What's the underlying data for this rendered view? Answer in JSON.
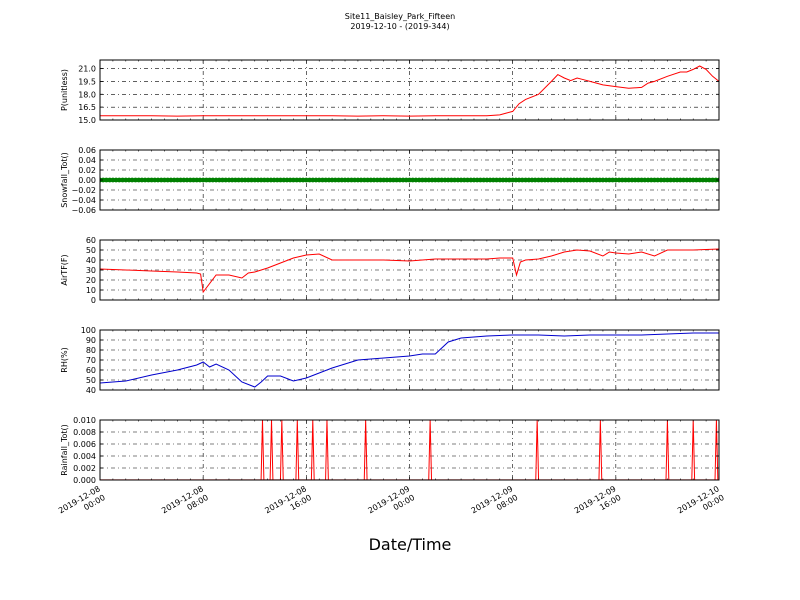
{
  "title_line1": "Site11_Baisley_Park_Fifteen",
  "title_line2": "2019-12-10 - (2019-344)",
  "xlabel": "Date/Time",
  "x_ticks": [
    {
      "t": 0,
      "line1": "2019-12-08",
      "line2": "00:00"
    },
    {
      "t": 8,
      "line1": "2019-12-08",
      "line2": "08:00"
    },
    {
      "t": 16,
      "line1": "2019-12-08",
      "line2": "16:00"
    },
    {
      "t": 24,
      "line1": "2019-12-09",
      "line2": "00:00"
    },
    {
      "t": 32,
      "line1": "2019-12-09",
      "line2": "08:00"
    },
    {
      "t": 40,
      "line1": "2019-12-09",
      "line2": "16:00"
    },
    {
      "t": 48,
      "line1": "2019-12-10",
      "line2": "00:00"
    }
  ],
  "chart_data": [
    {
      "type": "line",
      "ylabel": "P(unitless)",
      "color": "#ff0000",
      "ylim": [
        15.0,
        22.0
      ],
      "yticks": [
        15.0,
        16.5,
        18.0,
        19.5,
        21.0
      ],
      "ytick_labels": [
        "15.0",
        "16.5",
        "18.0",
        "19.5",
        "21.0"
      ],
      "x_hours": [
        0,
        4,
        6,
        8,
        12,
        16,
        18,
        20,
        22,
        24,
        26,
        28,
        30,
        31,
        31.5,
        32,
        32.5,
        33,
        34,
        35,
        35.5,
        36,
        36.5,
        37,
        37.5,
        38,
        39,
        40,
        41,
        42,
        42.5,
        43,
        44,
        45,
        45.5,
        46,
        46.5,
        47,
        47.5,
        48
      ],
      "y": [
        15.5,
        15.5,
        15.45,
        15.5,
        15.5,
        15.5,
        15.5,
        15.45,
        15.5,
        15.45,
        15.5,
        15.5,
        15.5,
        15.6,
        15.8,
        16.0,
        16.9,
        17.4,
        18.0,
        19.5,
        20.3,
        19.9,
        19.6,
        19.9,
        19.7,
        19.5,
        19.1,
        18.9,
        18.7,
        18.8,
        19.3,
        19.5,
        20.1,
        20.6,
        20.6,
        20.9,
        21.3,
        20.9,
        20.1,
        19.5
      ]
    },
    {
      "type": "scatter",
      "ylabel": "Snowfall_Tot()",
      "color": "#008000",
      "ylim": [
        -0.06,
        0.06
      ],
      "yticks": [
        -0.06,
        -0.04,
        -0.02,
        0.0,
        0.02,
        0.04,
        0.06
      ],
      "ytick_labels": [
        "−0.06",
        "−0.04",
        "−0.02",
        "0.00",
        "0.02",
        "0.04",
        "0.06"
      ],
      "x_hours": [
        0,
        48
      ],
      "y": [
        0.0,
        0.0
      ]
    },
    {
      "type": "line",
      "ylabel": "AirTF(F)",
      "color": "#ff0000",
      "ylim": [
        0,
        60
      ],
      "yticks": [
        0,
        10,
        20,
        30,
        40,
        50,
        60
      ],
      "ytick_labels": [
        "0",
        "10",
        "20",
        "30",
        "40",
        "50",
        "60"
      ],
      "x_hours": [
        0,
        2,
        4,
        6,
        7.5,
        7.8,
        8,
        9,
        10,
        11,
        11.5,
        12,
        13,
        14,
        15,
        16,
        17,
        18,
        20,
        22,
        24,
        26,
        28,
        30,
        31,
        32,
        32.3,
        32.6,
        33,
        34,
        35,
        36,
        37,
        38,
        39,
        39.5,
        40,
        41,
        42,
        43,
        44,
        46,
        48
      ],
      "y": [
        31,
        30,
        29,
        28,
        27,
        26,
        8,
        25,
        25,
        22,
        27,
        28,
        32,
        37,
        42,
        45,
        46,
        40,
        40,
        40,
        39,
        41,
        41,
        41,
        42,
        42,
        25,
        38,
        40,
        41,
        44,
        48,
        50,
        49,
        44,
        48,
        47,
        46,
        48,
        44,
        50,
        50,
        51
      ]
    },
    {
      "type": "line",
      "ylabel": "RH(%)",
      "color": "#0000cc",
      "ylim": [
        40,
        100
      ],
      "yticks": [
        40,
        50,
        60,
        70,
        80,
        90,
        100
      ],
      "ytick_labels": [
        "40",
        "50",
        "60",
        "70",
        "80",
        "90",
        "100"
      ],
      "x_hours": [
        0,
        2,
        4,
        6,
        7.5,
        8,
        8.5,
        9,
        10,
        10.5,
        11,
        12,
        12.5,
        13,
        14,
        15,
        16,
        18,
        20,
        22,
        24,
        25,
        26,
        27,
        28,
        30,
        32,
        34,
        36,
        38,
        40,
        42,
        44,
        46,
        48
      ],
      "y": [
        47,
        49,
        55,
        60,
        65,
        68,
        63,
        66,
        60,
        54,
        48,
        43,
        48,
        54,
        54,
        49,
        52,
        62,
        70,
        72,
        74,
        76,
        76,
        88,
        92,
        94,
        95,
        95,
        94,
        95,
        95,
        95,
        96,
        97,
        97
      ]
    },
    {
      "type": "line",
      "ylabel": "Rainfall_Tot()",
      "color": "#ff0000",
      "ylim": [
        0.0,
        0.01
      ],
      "yticks": [
        0.0,
        0.002,
        0.004,
        0.006,
        0.008,
        0.01
      ],
      "ytick_labels": [
        "0.000",
        "0.002",
        "0.004",
        "0.006",
        "0.008",
        "0.010"
      ],
      "spikes_x_hours": [
        12.6,
        13.3,
        14.1,
        15.3,
        16.5,
        17.6,
        20.6,
        25.6,
        33.9,
        38.8,
        44.0,
        46.0,
        47.8
      ],
      "spike_value": 0.01
    }
  ]
}
